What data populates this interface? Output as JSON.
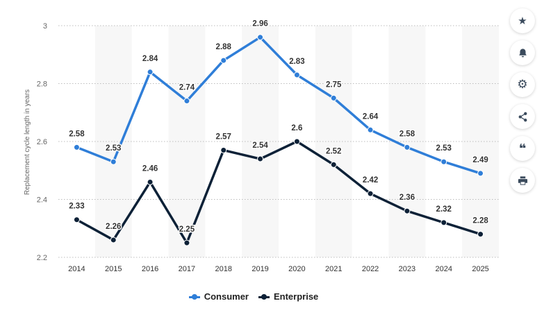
{
  "chart_data": {
    "type": "line",
    "ylabel": "Replacement cycle length in years",
    "xlabel": "",
    "categories": [
      "2014",
      "2015",
      "2016",
      "2017",
      "2018",
      "2019",
      "2020",
      "2021",
      "2022",
      "2023",
      "2024",
      "2025"
    ],
    "ylim": [
      2.2,
      3.0
    ],
    "yticks": [
      2.2,
      2.4,
      2.6,
      2.8,
      3
    ],
    "ytick_labels": [
      "2.2",
      "2.4",
      "2.6",
      "2.8",
      "3"
    ],
    "series": [
      {
        "name": "Consumer",
        "color": "#2f7ed8",
        "values": [
          2.58,
          2.53,
          2.84,
          2.74,
          2.88,
          2.96,
          2.83,
          2.75,
          2.64,
          2.58,
          2.53,
          2.49
        ],
        "labels": [
          "2.58",
          "2.53",
          "2.84",
          "2.74",
          "2.88",
          "2.96",
          "2.83",
          "2.75",
          "2.64",
          "2.58",
          "2.53",
          "2.49"
        ]
      },
      {
        "name": "Enterprise",
        "color": "#0d2137",
        "values": [
          2.33,
          2.26,
          2.46,
          2.25,
          2.57,
          2.54,
          2.6,
          2.52,
          2.42,
          2.36,
          2.32,
          2.28
        ],
        "labels": [
          "2.33",
          "2.26",
          "2.46",
          "2.25",
          "2.57",
          "2.54",
          "2.6",
          "2.52",
          "2.42",
          "2.36",
          "2.32",
          "2.28"
        ]
      }
    ],
    "grid": true,
    "legend": "bottom-center"
  },
  "toolbar": [
    {
      "name": "favorite-button",
      "icon": "star-icon",
      "glyph": "★"
    },
    {
      "name": "notification-button",
      "icon": "bell-icon",
      "glyph": "bell"
    },
    {
      "name": "settings-button",
      "icon": "gear-icon",
      "glyph": "⚙"
    },
    {
      "name": "share-button",
      "icon": "share-icon",
      "glyph": "share"
    },
    {
      "name": "cite-button",
      "icon": "quote-icon",
      "glyph": "❝"
    },
    {
      "name": "print-button",
      "icon": "printer-icon",
      "glyph": "print"
    }
  ]
}
